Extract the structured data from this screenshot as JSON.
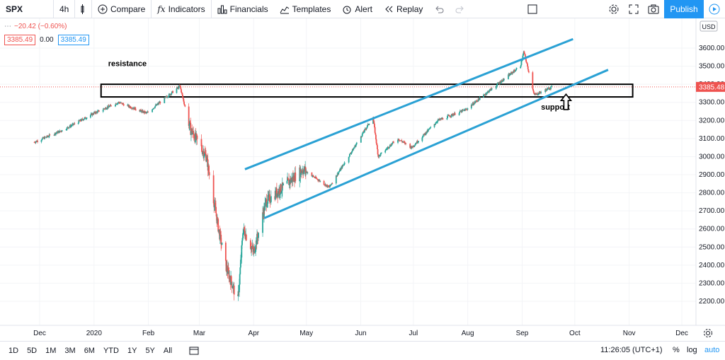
{
  "toolbar": {
    "symbol": "SPX",
    "interval": "4h",
    "compare": "Compare",
    "indicators": "Indicators",
    "financials": "Financials",
    "templates": "Templates",
    "alert": "Alert",
    "replay": "Replay",
    "publish": "Publish"
  },
  "legend": {
    "change": "−20.42 (−0.60%)",
    "bid": "3385.49",
    "spread": "0.00",
    "ask": "3385.49"
  },
  "chart_data": {
    "type": "candlestick",
    "symbol": "SPX",
    "currency": "USD",
    "last_price": "3385.48",
    "y_ticks": [
      2200,
      2300,
      2400,
      2500,
      2600,
      2700,
      2800,
      2900,
      3000,
      3100,
      3200,
      3300,
      3400,
      3500,
      3600
    ],
    "x_ticks": [
      "Dec",
      "2020",
      "Feb",
      "Mar",
      "Apr",
      "May",
      "Jun",
      "Jul",
      "Aug",
      "Sep",
      "Oct",
      "Nov",
      "Dec"
    ],
    "price_path": [
      [
        "2019-11-28",
        3080
      ],
      [
        "2019-12-15",
        3150
      ],
      [
        "2020-01-01",
        3240
      ],
      [
        "2020-01-15",
        3300
      ],
      [
        "2020-01-31",
        3240
      ],
      [
        "2020-02-19",
        3390
      ],
      [
        "2020-02-25",
        3150
      ],
      [
        "2020-03-05",
        3000
      ],
      [
        "2020-03-12",
        2600
      ],
      [
        "2020-03-16",
        2400
      ],
      [
        "2020-03-23",
        2200
      ],
      [
        "2020-03-26",
        2600
      ],
      [
        "2020-04-01",
        2470
      ],
      [
        "2020-04-08",
        2750
      ],
      [
        "2020-04-20",
        2850
      ],
      [
        "2020-04-29",
        2930
      ],
      [
        "2020-05-14",
        2830
      ],
      [
        "2020-05-27",
        3030
      ],
      [
        "2020-06-08",
        3220
      ],
      [
        "2020-06-11",
        3000
      ],
      [
        "2020-06-22",
        3100
      ],
      [
        "2020-06-30",
        3050
      ],
      [
        "2020-07-15",
        3200
      ],
      [
        "2020-07-31",
        3260
      ],
      [
        "2020-08-14",
        3370
      ],
      [
        "2020-08-31",
        3500
      ],
      [
        "2020-09-02",
        3580
      ],
      [
        "2020-09-08",
        3340
      ],
      [
        "2020-09-18",
        3385
      ]
    ],
    "channel": {
      "upper": [
        [
          "2020-03-27",
          2930
        ],
        [
          "2020-09-30",
          3650
        ]
      ],
      "lower": [
        [
          "2020-04-07",
          2660
        ],
        [
          "2020-10-20",
          3480
        ]
      ]
    },
    "zone": {
      "y_top": 3400,
      "y_bottom": 3330,
      "x_start": "2020-01-05",
      "x_end": "2020-11-03"
    },
    "annotations": [
      {
        "text": "resistance",
        "x": "2020-01-20",
        "y": 3500
      },
      {
        "text": "support",
        "x": "2020-09-20",
        "y": 3260
      }
    ]
  },
  "bottom": {
    "ranges": [
      "1D",
      "5D",
      "1M",
      "3M",
      "6M",
      "YTD",
      "1Y",
      "5Y",
      "All"
    ],
    "clock": "11:26:05 (UTC+1)",
    "pct": "%",
    "log": "log",
    "auto": "auto"
  }
}
